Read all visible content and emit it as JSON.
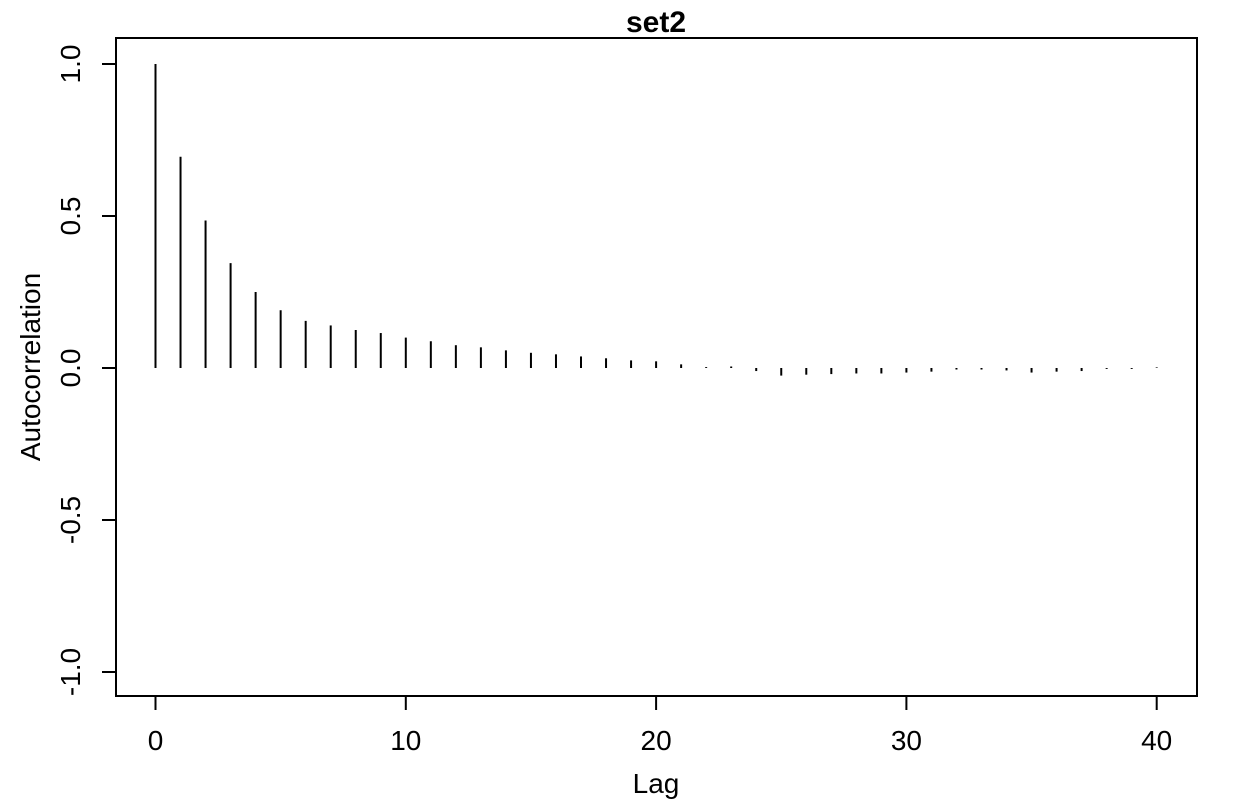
{
  "chart_data": {
    "type": "bar",
    "title": "set2",
    "xlabel": "Lag",
    "ylabel": "Autocorrelation",
    "xlim": [
      -1.6,
      41.6
    ],
    "ylim": [
      -1.08,
      1.08
    ],
    "x_ticks": [
      0,
      10,
      20,
      30,
      40
    ],
    "x_tick_labels": [
      "0",
      "10",
      "20",
      "30",
      "40"
    ],
    "y_ticks": [
      -1.0,
      -0.5,
      0.0,
      0.5,
      1.0
    ],
    "y_tick_labels": [
      "-1.0",
      "-0.5",
      "0.0",
      "0.5",
      "1.0"
    ],
    "grid": false,
    "lags": [
      0,
      1,
      2,
      3,
      4,
      5,
      6,
      7,
      8,
      9,
      10,
      11,
      12,
      13,
      14,
      15,
      16,
      17,
      18,
      19,
      20,
      21,
      22,
      23,
      24,
      25,
      26,
      27,
      28,
      29,
      30,
      31,
      32,
      33,
      34,
      35,
      36,
      37,
      38,
      39,
      40
    ],
    "values": [
      1.0,
      0.695,
      0.485,
      0.345,
      0.25,
      0.19,
      0.155,
      0.14,
      0.125,
      0.115,
      0.1,
      0.088,
      0.075,
      0.068,
      0.058,
      0.05,
      0.045,
      0.038,
      0.032,
      0.025,
      0.022,
      0.012,
      0.003,
      0.005,
      -0.01,
      -0.025,
      -0.022,
      -0.02,
      -0.018,
      -0.018,
      -0.015,
      -0.012,
      -0.005,
      -0.005,
      -0.008,
      -0.015,
      -0.012,
      -0.01,
      -0.003,
      -0.003,
      0.002
    ]
  }
}
